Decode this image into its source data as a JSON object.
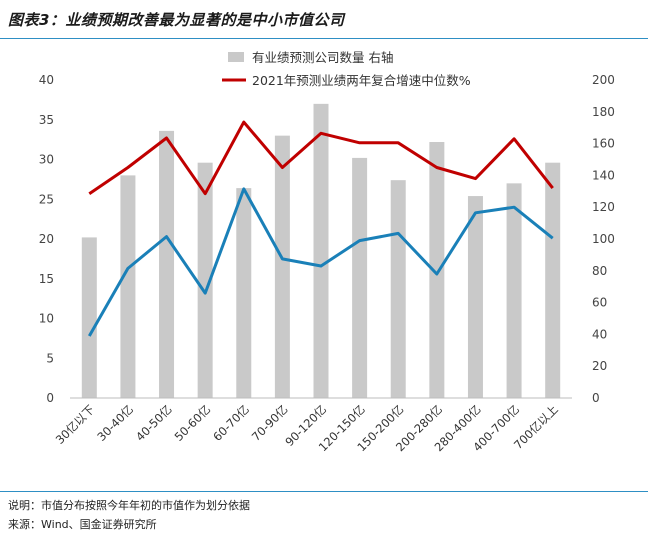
{
  "figure": {
    "title": "图表3：业绩预期改善最为显著的是中小市值公司",
    "note": "说明：市值分布按照今年年初的市值作为划分依据",
    "source": "来源：Wind、国金证券研究所"
  },
  "colors": {
    "bar": "#c9c9c9",
    "left_line": "#1a80b8",
    "right_line": "#c00000",
    "rule": "#2e8fc4"
  },
  "chart_data": {
    "type": "bar",
    "categories": [
      "30亿以下",
      "30-40亿",
      "40-50亿",
      "50-60亿",
      "60-70亿",
      "70-90亿",
      "90-120亿",
      "120-150亿",
      "150-200亿",
      "200-280亿",
      "280-400亿",
      "400-700亿",
      "700亿以上"
    ],
    "ylim_left": [
      0,
      40
    ],
    "yticks_left": [
      0,
      5,
      10,
      15,
      20,
      25,
      30,
      35,
      40
    ],
    "ylim_right": [
      0,
      200
    ],
    "yticks_right": [
      0,
      20,
      40,
      60,
      80,
      100,
      120,
      140,
      160,
      180,
      200
    ],
    "legend_position": "top",
    "series": [
      {
        "name": "有业绩预测公司数量 右轴",
        "type": "bar",
        "axis": "right",
        "values": [
          101,
          140,
          168,
          148,
          132,
          165,
          185,
          151,
          137,
          161,
          127,
          135,
          148
        ]
      },
      {
        "name": "2021年预测业绩两年复合增速中位数%",
        "type": "line",
        "axis": "left",
        "values": [
          25.7,
          29.0,
          32.7,
          25.7,
          34.7,
          29.0,
          33.3,
          32.1,
          32.1,
          29.0,
          27.6,
          32.6,
          26.4
        ]
      },
      {
        "name": "",
        "type": "line",
        "axis": "left",
        "values": [
          7.8,
          16.3,
          20.3,
          13.2,
          26.3,
          17.5,
          16.6,
          19.8,
          20.7,
          15.6,
          23.3,
          24.0,
          20.1
        ]
      }
    ]
  }
}
